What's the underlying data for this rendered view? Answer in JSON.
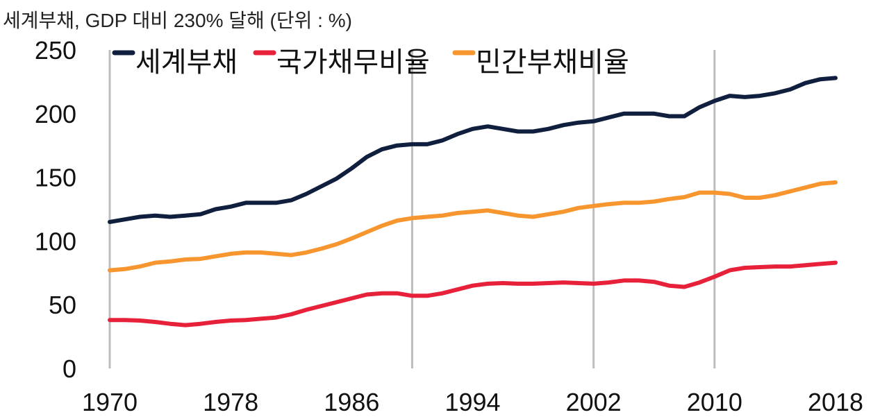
{
  "chart_data": {
    "type": "line",
    "title": "세계부채, GDP 대비 230% 달해 (단위 : %)",
    "xlabel": "",
    "ylabel": "",
    "ylim": [
      0,
      250
    ],
    "yticks": [
      0,
      50,
      100,
      150,
      200,
      250
    ],
    "xlim": [
      1970,
      2018
    ],
    "xticks": [
      1970,
      1978,
      1986,
      1994,
      2002,
      2010,
      2018
    ],
    "vertical_gridlines": [
      1970,
      1990,
      2002,
      2010
    ],
    "legend_position": "top",
    "x": [
      1970,
      1971,
      1972,
      1973,
      1974,
      1975,
      1976,
      1977,
      1978,
      1979,
      1980,
      1981,
      1982,
      1983,
      1984,
      1985,
      1986,
      1987,
      1988,
      1989,
      1990,
      1991,
      1992,
      1993,
      1994,
      1995,
      1996,
      1997,
      1998,
      1999,
      2000,
      2001,
      2002,
      2003,
      2004,
      2005,
      2006,
      2007,
      2008,
      2009,
      2010,
      2011,
      2012,
      2013,
      2014,
      2015,
      2016,
      2017,
      2018
    ],
    "series": [
      {
        "name": "세계부채",
        "color": "#0f1f3d",
        "values": [
          115,
          117,
          119,
          120,
          119,
          120,
          121,
          125,
          127,
          130,
          130,
          130,
          132,
          137,
          143,
          149,
          157,
          166,
          172,
          175,
          176,
          176,
          179,
          184,
          188,
          190,
          188,
          186,
          186,
          188,
          191,
          193,
          194,
          197,
          200,
          200,
          200,
          198,
          198,
          205,
          210,
          214,
          213,
          214,
          216,
          219,
          224,
          227,
          228
        ]
      },
      {
        "name": "국가채무비율",
        "color": "#e8213a",
        "values": [
          38,
          38,
          37.6,
          36.5,
          35,
          34,
          35,
          36.5,
          37.6,
          38,
          39,
          40,
          42.5,
          46,
          49,
          52,
          55,
          58,
          59,
          59,
          57,
          57,
          59,
          62,
          65,
          66.5,
          67,
          66.5,
          66.5,
          67,
          67.5,
          67,
          66.5,
          67.5,
          69,
          69,
          68,
          65,
          64,
          67.5,
          72,
          77,
          79,
          79.5,
          80,
          80,
          81,
          82,
          83
        ]
      },
      {
        "name": "민간부채비율",
        "color": "#f7962f",
        "values": [
          77,
          78,
          80,
          83,
          84,
          85.5,
          86,
          88,
          90,
          91,
          91,
          90,
          89,
          91,
          94,
          97.5,
          102,
          107,
          112,
          116,
          118,
          119,
          120,
          122,
          123,
          124,
          122,
          120,
          119,
          121,
          123,
          126,
          127.5,
          129,
          130,
          130,
          131,
          133,
          134.5,
          138,
          138,
          137,
          134,
          134,
          136,
          139,
          142,
          145,
          146
        ]
      }
    ]
  }
}
